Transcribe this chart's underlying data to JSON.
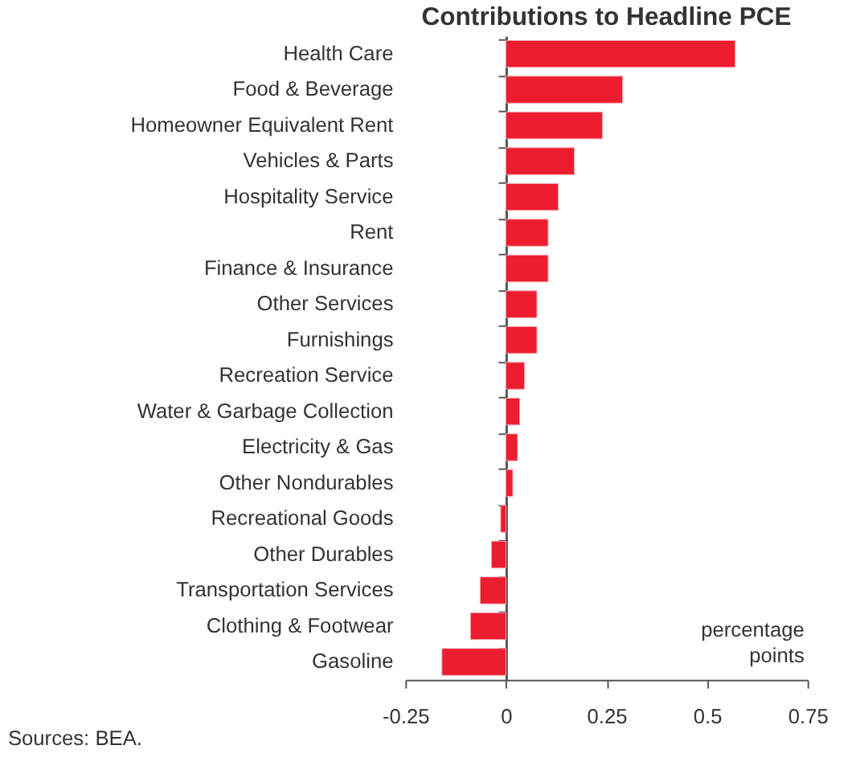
{
  "chart_data": {
    "type": "bar",
    "orientation": "horizontal",
    "title": "Contributions to Headline PCE",
    "xlabel": "percentage points",
    "categories": [
      "Health Care",
      "Food & Beverage",
      "Homeowner Equivalent Rent",
      "Vehicles & Parts",
      "Hospitality Service",
      "Rent",
      "Finance & Insurance",
      "Other Services",
      "Furnishings",
      "Recreation Service",
      "Water & Garbage Collection",
      "Electricity & Gas",
      "Other Nondurables",
      "Recreational Goods",
      "Other Durables",
      "Transportation Services",
      "Clothing & Footwear",
      "Gasoline"
    ],
    "values": [
      0.57,
      0.29,
      0.24,
      0.17,
      0.13,
      0.105,
      0.105,
      0.077,
      0.077,
      0.046,
      0.034,
      0.029,
      0.017,
      -0.013,
      -0.036,
      -0.064,
      -0.088,
      -0.159
    ],
    "color": "#ed1c2e",
    "xlim": [
      -0.25,
      0.75
    ],
    "xticks": [
      -0.25,
      0,
      0.25,
      0.5,
      0.75
    ],
    "annotations": [
      "Sources: BEA."
    ]
  }
}
